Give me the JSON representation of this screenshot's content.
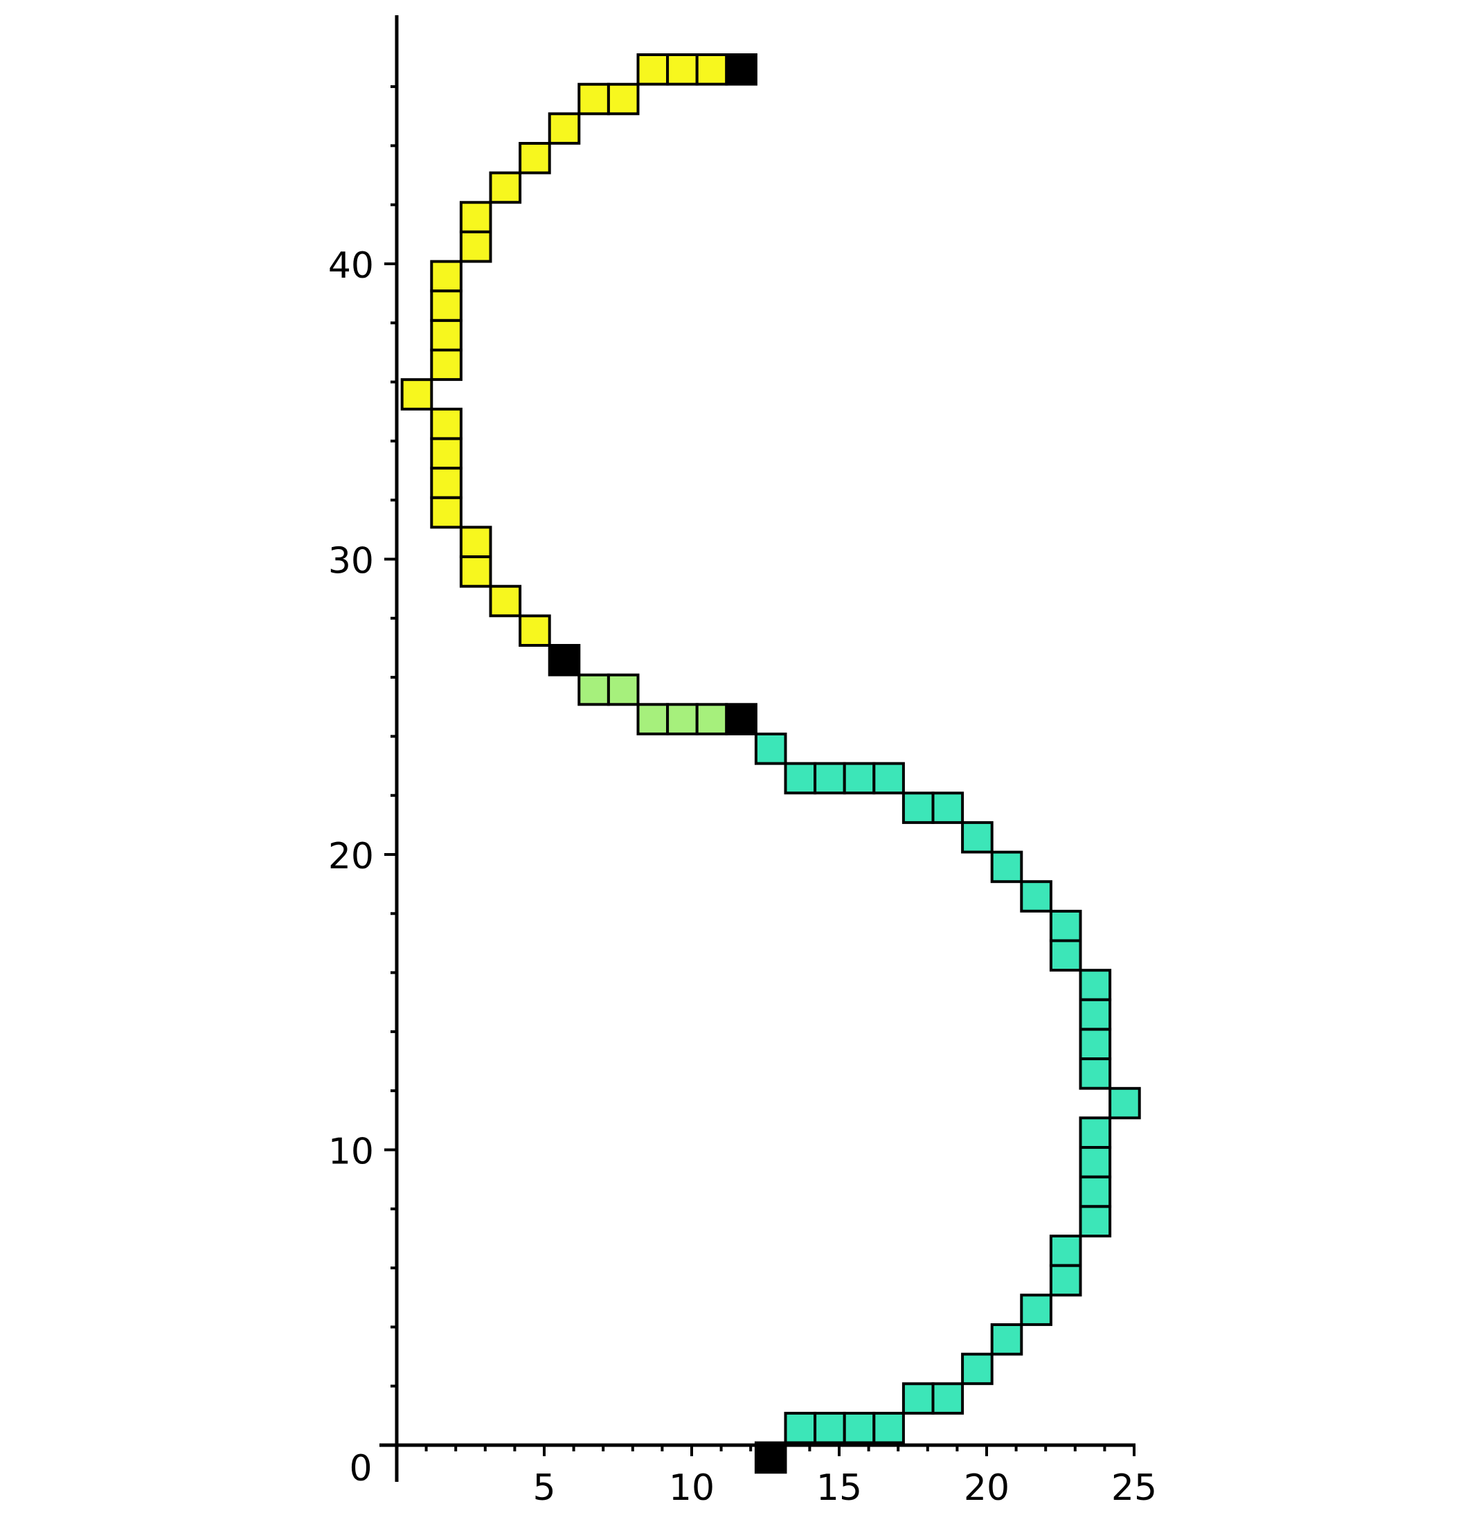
{
  "chart_data": {
    "type": "scatter",
    "title": "",
    "xlabel": "",
    "ylabel": "",
    "xlim": [
      0,
      25
    ],
    "ylim": [
      0,
      47
    ],
    "grid": false,
    "legend": "none",
    "xticks": [
      5,
      10,
      15,
      20,
      25
    ],
    "yticks": [
      10,
      20,
      30,
      40
    ],
    "origin_label": "0",
    "cell_size": 1,
    "series": [
      {
        "color": "#f7f71e",
        "cells": [
          [
            8,
            46
          ],
          [
            9,
            46
          ],
          [
            10,
            46
          ],
          [
            6,
            45
          ],
          [
            7,
            45
          ],
          [
            5,
            44
          ],
          [
            4,
            43
          ],
          [
            3,
            42
          ],
          [
            2,
            41
          ],
          [
            2,
            40
          ],
          [
            1,
            39
          ],
          [
            1,
            38
          ],
          [
            1,
            37
          ],
          [
            1,
            36
          ],
          [
            0,
            35
          ],
          [
            1,
            34
          ],
          [
            1,
            33
          ],
          [
            1,
            32
          ],
          [
            1,
            31
          ],
          [
            2,
            30
          ],
          [
            2,
            29
          ],
          [
            3,
            28
          ],
          [
            4,
            27
          ]
        ]
      },
      {
        "color": "#a6f07c",
        "cells": [
          [
            6,
            25
          ],
          [
            7,
            25
          ],
          [
            8,
            24
          ],
          [
            9,
            24
          ],
          [
            10,
            24
          ]
        ]
      },
      {
        "color": "#3ce6b8",
        "cells": [
          [
            12,
            23
          ],
          [
            13,
            22
          ],
          [
            14,
            22
          ],
          [
            15,
            22
          ],
          [
            16,
            22
          ],
          [
            17,
            21
          ],
          [
            18,
            21
          ],
          [
            19,
            20
          ],
          [
            20,
            19
          ],
          [
            21,
            18
          ],
          [
            22,
            17
          ],
          [
            22,
            16
          ],
          [
            23,
            15
          ],
          [
            23,
            14
          ],
          [
            23,
            13
          ],
          [
            23,
            12
          ],
          [
            24,
            11
          ],
          [
            23,
            10
          ],
          [
            23,
            9
          ],
          [
            23,
            8
          ],
          [
            23,
            7
          ],
          [
            22,
            6
          ],
          [
            22,
            5
          ],
          [
            21,
            4
          ],
          [
            20,
            3
          ],
          [
            19,
            2
          ],
          [
            17,
            1
          ],
          [
            18,
            1
          ],
          [
            13,
            0
          ],
          [
            14,
            0
          ],
          [
            15,
            0
          ],
          [
            16,
            0
          ]
        ]
      },
      {
        "color": "#000000",
        "cells": [
          [
            11,
            46
          ],
          [
            5,
            26
          ],
          [
            11,
            24
          ],
          [
            12,
            -1
          ]
        ]
      }
    ]
  }
}
